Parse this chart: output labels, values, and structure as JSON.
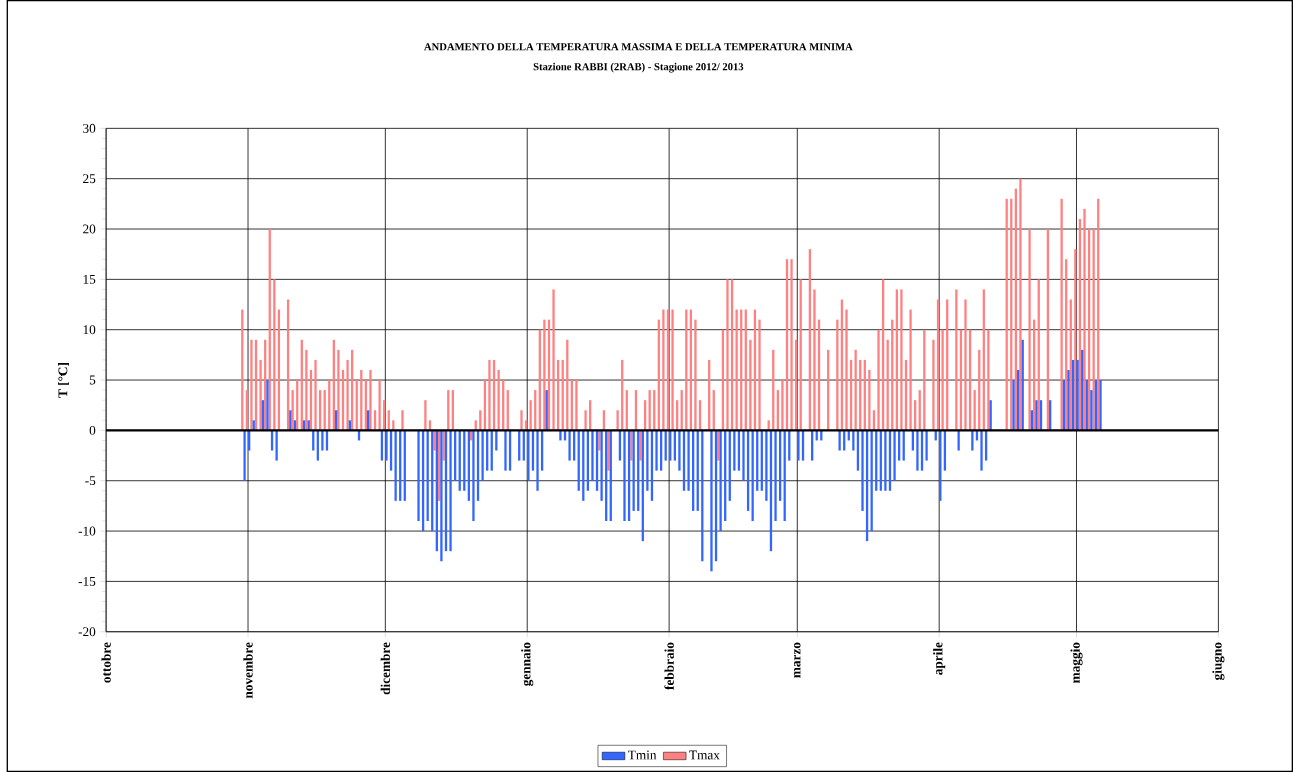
{
  "chart_data": {
    "type": "bar",
    "title": "ANDAMENTO DELLA TEMPERATURA MASSIMA  E DELLA TEMPERATURA MINIMA",
    "subtitle": "Stazione RABBI (2RAB) - Stagione  2012/ 2013",
    "ylabel": "T [°C]",
    "xlim": [
      "2012-10-01",
      "2013-06-01"
    ],
    "ylim": [
      -20,
      30
    ],
    "yticks": [
      -20,
      -15,
      -10,
      -5,
      0,
      5,
      10,
      15,
      20,
      25,
      30
    ],
    "xticks": [
      {
        "value": "2012-10-01",
        "label": "ottobre"
      },
      {
        "value": "2012-11-01",
        "label": "novembre"
      },
      {
        "value": "2012-12-01",
        "label": "dicembre"
      },
      {
        "value": "2013-01-01",
        "label": "gennaio"
      },
      {
        "value": "2013-02-01",
        "label": "febbraio"
      },
      {
        "value": "2013-03-01",
        "label": "marzo"
      },
      {
        "value": "2013-04-01",
        "label": "aprile"
      },
      {
        "value": "2013-05-01",
        "label": "maggio"
      },
      {
        "value": "2013-06-01",
        "label": "giugno"
      }
    ],
    "grid": true,
    "legend": "bottom",
    "x": [
      "2012-10-31",
      "2012-11-01",
      "2012-11-02",
      "2012-11-03",
      "2012-11-04",
      "2012-11-05",
      "2012-11-06",
      "2012-11-07",
      "2012-11-08",
      "2012-11-09",
      "2012-11-10",
      "2012-11-11",
      "2012-11-12",
      "2012-11-13",
      "2012-11-14",
      "2012-11-15",
      "2012-11-16",
      "2012-11-17",
      "2012-11-18",
      "2012-11-19",
      "2012-11-20",
      "2012-11-21",
      "2012-11-22",
      "2012-11-23",
      "2012-11-24",
      "2012-11-25",
      "2012-11-26",
      "2012-11-27",
      "2012-11-28",
      "2012-11-29",
      "2012-11-30",
      "2012-12-01",
      "2012-12-02",
      "2012-12-03",
      "2012-12-04",
      "2012-12-05",
      "2012-12-06",
      "2012-12-07",
      "2012-12-08",
      "2012-12-09",
      "2012-12-10",
      "2012-12-11",
      "2012-12-12",
      "2012-12-13",
      "2012-12-14",
      "2012-12-15",
      "2012-12-16",
      "2012-12-17",
      "2012-12-18",
      "2012-12-19",
      "2012-12-20",
      "2012-12-21",
      "2012-12-22",
      "2012-12-23",
      "2012-12-24",
      "2012-12-25",
      "2012-12-26",
      "2012-12-27",
      "2012-12-28",
      "2012-12-29",
      "2012-12-30",
      "2012-12-31",
      "2013-01-01",
      "2013-01-02",
      "2013-01-03",
      "2013-01-04",
      "2013-01-05",
      "2013-01-06",
      "2013-01-07",
      "2013-01-08",
      "2013-01-09",
      "2013-01-10",
      "2013-01-11",
      "2013-01-12",
      "2013-01-13",
      "2013-01-14",
      "2013-01-15",
      "2013-01-16",
      "2013-01-17",
      "2013-01-18",
      "2013-01-19",
      "2013-01-20",
      "2013-01-21",
      "2013-01-22",
      "2013-01-23",
      "2013-01-24",
      "2013-01-25",
      "2013-01-26",
      "2013-01-27",
      "2013-01-28",
      "2013-01-29",
      "2013-01-30",
      "2013-01-31",
      "2013-02-01",
      "2013-02-02",
      "2013-02-03",
      "2013-02-04",
      "2013-02-05",
      "2013-02-06",
      "2013-02-07",
      "2013-02-08",
      "2013-02-09",
      "2013-02-10",
      "2013-02-11",
      "2013-02-12",
      "2013-02-13",
      "2013-02-14",
      "2013-02-15",
      "2013-02-16",
      "2013-02-17",
      "2013-02-18",
      "2013-02-19",
      "2013-02-20",
      "2013-02-21",
      "2013-02-22",
      "2013-02-23",
      "2013-02-24",
      "2013-02-25",
      "2013-02-26",
      "2013-02-27",
      "2013-02-28",
      "2013-03-01",
      "2013-03-02",
      "2013-03-03",
      "2013-03-04",
      "2013-03-05",
      "2013-03-06",
      "2013-03-07",
      "2013-03-08",
      "2013-03-09",
      "2013-03-10",
      "2013-03-11",
      "2013-03-12",
      "2013-03-13",
      "2013-03-14",
      "2013-03-15",
      "2013-03-16",
      "2013-03-17",
      "2013-03-18",
      "2013-03-19",
      "2013-03-20",
      "2013-03-21",
      "2013-03-22",
      "2013-03-23",
      "2013-03-24",
      "2013-03-25",
      "2013-03-26",
      "2013-03-27",
      "2013-03-28",
      "2013-03-29",
      "2013-03-30",
      "2013-03-31",
      "2013-04-01",
      "2013-04-02",
      "2013-04-03",
      "2013-04-04",
      "2013-04-05",
      "2013-04-06",
      "2013-04-07",
      "2013-04-08",
      "2013-04-09",
      "2013-04-10",
      "2013-04-11",
      "2013-04-12",
      "2013-04-13",
      "2013-04-14",
      "2013-04-15",
      "2013-04-16",
      "2013-04-17",
      "2013-04-18",
      "2013-04-19",
      "2013-04-20",
      "2013-04-21",
      "2013-04-22",
      "2013-04-23",
      "2013-04-24",
      "2013-04-25",
      "2013-04-26",
      "2013-04-27",
      "2013-04-28",
      "2013-04-29",
      "2013-04-30",
      "2013-05-01",
      "2013-05-02",
      "2013-05-03",
      "2013-05-04",
      "2013-05-05",
      "2013-05-06"
    ],
    "series": [
      {
        "name": "Tmax",
        "color": "#ff8080",
        "values": [
          12,
          4,
          9,
          9,
          7,
          9,
          20,
          15,
          12,
          null,
          13,
          4,
          5,
          9,
          8,
          6,
          7,
          4,
          4,
          5,
          9,
          8,
          6,
          7,
          8,
          5,
          6,
          5,
          6,
          2,
          5,
          3,
          2,
          1,
          0,
          2,
          null,
          null,
          0,
          0,
          3,
          1,
          -2,
          -7,
          -3,
          4,
          4,
          0,
          0,
          0,
          -1,
          1,
          2,
          5,
          7,
          7,
          6,
          5,
          4,
          null,
          0,
          2,
          1,
          3,
          4,
          10,
          11,
          11,
          14,
          7,
          7,
          9,
          5,
          5,
          0,
          2,
          3,
          0,
          -2,
          2,
          -4,
          null,
          2,
          7,
          4,
          -3,
          4,
          -3,
          3,
          4,
          4,
          11,
          12,
          12,
          12,
          3,
          4,
          12,
          12,
          11,
          3,
          null,
          7,
          4,
          -3,
          10,
          15,
          15,
          12,
          12,
          12,
          9,
          12,
          11,
          0,
          1,
          8,
          4,
          5,
          17,
          17,
          9,
          15,
          null,
          18,
          14,
          11,
          null,
          8,
          null,
          11,
          13,
          12,
          7,
          8,
          7,
          7,
          6,
          2,
          10,
          15,
          9,
          11,
          14,
          14,
          7,
          12,
          3,
          4,
          10,
          null,
          9,
          13,
          10,
          13,
          null,
          14,
          10,
          13,
          10,
          4,
          8,
          14,
          10,
          null,
          null,
          null,
          23,
          23,
          24,
          25,
          null,
          20,
          11,
          15,
          null,
          20,
          null,
          null,
          23,
          17,
          13,
          18,
          21,
          22,
          20,
          20,
          23
        ]
      },
      {
        "name": "Tmin",
        "color": "#3366ff",
        "values": [
          -5,
          -2,
          1,
          0,
          3,
          5,
          -2,
          -3,
          0,
          null,
          2,
          1,
          0,
          1,
          1,
          -2,
          -3,
          -2,
          -2,
          0,
          2,
          0,
          0,
          1,
          0,
          -1,
          0,
          2,
          0,
          0,
          -3,
          -3,
          -4,
          -7,
          -7,
          -7,
          null,
          null,
          -9,
          -10,
          -9,
          -10,
          -12,
          -13,
          -12,
          -12,
          -5,
          -6,
          -6,
          -7,
          -9,
          -7,
          -5,
          -4,
          -4,
          -2,
          0,
          -4,
          -4,
          null,
          -3,
          -3,
          -5,
          -4,
          -6,
          -4,
          4,
          0,
          0,
          -1,
          -1,
          -3,
          -3,
          -6,
          -7,
          -6,
          -5,
          -6,
          -7,
          -9,
          -9,
          null,
          -3,
          -9,
          -9,
          -8,
          -8,
          -11,
          -6,
          -7,
          -4,
          -4,
          -3,
          -3,
          -3,
          -4,
          -6,
          -6,
          -8,
          -8,
          -13,
          null,
          -14,
          -13,
          -10,
          -9,
          -7,
          -4,
          -4,
          -5,
          -8,
          -9,
          -6,
          -6,
          -7,
          -12,
          -9,
          -7,
          -9,
          -3,
          0,
          -3,
          -3,
          null,
          -3,
          -1,
          -1,
          null,
          0,
          null,
          -2,
          -2,
          -1,
          -2,
          -4,
          -8,
          -11,
          -10,
          -6,
          -6,
          -6,
          -6,
          -5,
          -3,
          -3,
          0,
          -2,
          -4,
          -4,
          -3,
          null,
          -1,
          -7,
          -4,
          0,
          null,
          -2,
          0,
          0,
          -2,
          -1,
          -4,
          -3,
          3,
          null,
          null,
          null,
          0,
          5,
          6,
          9,
          null,
          2,
          3,
          3,
          null,
          3,
          null,
          null,
          5,
          6,
          7,
          7,
          8,
          5,
          4,
          5,
          5
        ]
      }
    ]
  }
}
